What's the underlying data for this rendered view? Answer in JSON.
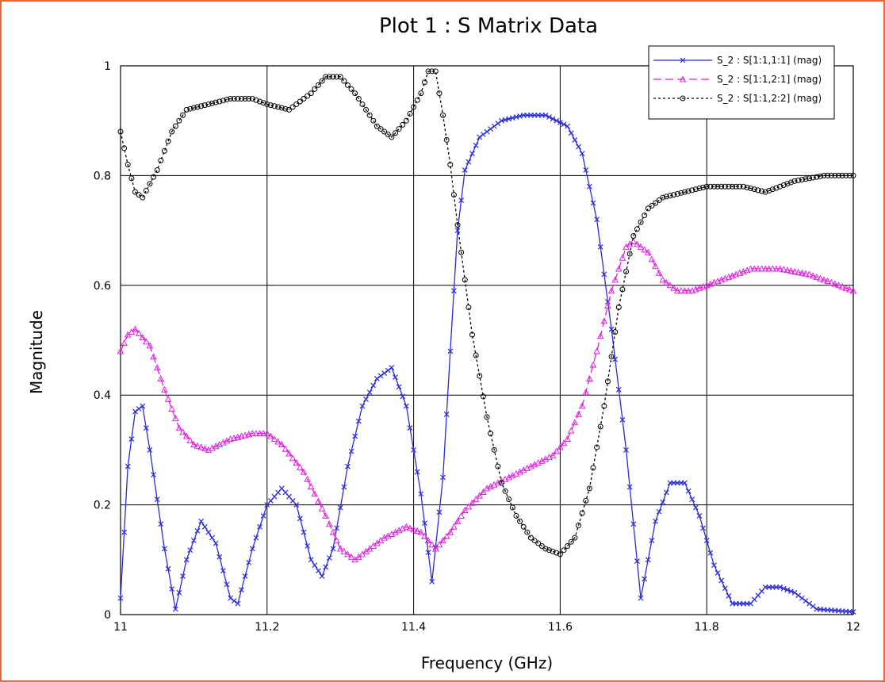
{
  "chart_data": {
    "type": "line",
    "title": "Plot 1 : S Matrix Data",
    "xlabel": "Frequency (GHz)",
    "ylabel": "Magnitude",
    "xlim": [
      11,
      12
    ],
    "ylim": [
      0,
      1
    ],
    "xticks": [
      "11",
      "11.2",
      "11.4",
      "11.6",
      "11.8",
      "12"
    ],
    "yticks": [
      "0",
      "0.2",
      "0.4",
      "0.6",
      "0.8",
      "1"
    ],
    "grid": true,
    "legend_position": "top-right",
    "series": [
      {
        "name": "S_2 : S[1:1,1:1] (mag)",
        "color": "#2b2bd6",
        "marker": "x",
        "linestyle": "solid",
        "points": [
          [
            11.0,
            0.03
          ],
          [
            11.01,
            0.27
          ],
          [
            11.02,
            0.37
          ],
          [
            11.03,
            0.38
          ],
          [
            11.04,
            0.3
          ],
          [
            11.06,
            0.12
          ],
          [
            11.075,
            0.01
          ],
          [
            11.09,
            0.1
          ],
          [
            11.11,
            0.17
          ],
          [
            11.13,
            0.13
          ],
          [
            11.15,
            0.03
          ],
          [
            11.16,
            0.02
          ],
          [
            11.18,
            0.12
          ],
          [
            11.2,
            0.2
          ],
          [
            11.22,
            0.23
          ],
          [
            11.24,
            0.2
          ],
          [
            11.26,
            0.1
          ],
          [
            11.275,
            0.07
          ],
          [
            11.29,
            0.12
          ],
          [
            11.31,
            0.27
          ],
          [
            11.33,
            0.38
          ],
          [
            11.35,
            0.43
          ],
          [
            11.37,
            0.45
          ],
          [
            11.39,
            0.38
          ],
          [
            11.41,
            0.22
          ],
          [
            11.425,
            0.06
          ],
          [
            11.44,
            0.25
          ],
          [
            11.45,
            0.48
          ],
          [
            11.46,
            0.7
          ],
          [
            11.47,
            0.81
          ],
          [
            11.49,
            0.87
          ],
          [
            11.52,
            0.9
          ],
          [
            11.55,
            0.91
          ],
          [
            11.58,
            0.91
          ],
          [
            11.61,
            0.89
          ],
          [
            11.63,
            0.84
          ],
          [
            11.65,
            0.72
          ],
          [
            11.67,
            0.52
          ],
          [
            11.69,
            0.3
          ],
          [
            11.71,
            0.03
          ],
          [
            11.73,
            0.17
          ],
          [
            11.75,
            0.24
          ],
          [
            11.77,
            0.24
          ],
          [
            11.79,
            0.18
          ],
          [
            11.81,
            0.09
          ],
          [
            11.835,
            0.02
          ],
          [
            11.86,
            0.02
          ],
          [
            11.88,
            0.05
          ],
          [
            11.9,
            0.05
          ],
          [
            11.92,
            0.04
          ],
          [
            11.95,
            0.01
          ],
          [
            12.0,
            0.005
          ]
        ]
      },
      {
        "name": "S_2 : S[1:1,2:1] (mag)",
        "color": "#e020e0",
        "marker": "triangle",
        "linestyle": "dashed",
        "points": [
          [
            11.0,
            0.48
          ],
          [
            11.01,
            0.51
          ],
          [
            11.02,
            0.52
          ],
          [
            11.04,
            0.49
          ],
          [
            11.06,
            0.41
          ],
          [
            11.08,
            0.34
          ],
          [
            11.1,
            0.31
          ],
          [
            11.12,
            0.3
          ],
          [
            11.15,
            0.32
          ],
          [
            11.18,
            0.33
          ],
          [
            11.2,
            0.33
          ],
          [
            11.22,
            0.31
          ],
          [
            11.25,
            0.26
          ],
          [
            11.28,
            0.18
          ],
          [
            11.3,
            0.12
          ],
          [
            11.32,
            0.1
          ],
          [
            11.34,
            0.12
          ],
          [
            11.36,
            0.14
          ],
          [
            11.39,
            0.16
          ],
          [
            11.41,
            0.15
          ],
          [
            11.43,
            0.12
          ],
          [
            11.45,
            0.15
          ],
          [
            11.47,
            0.19
          ],
          [
            11.5,
            0.23
          ],
          [
            11.53,
            0.25
          ],
          [
            11.56,
            0.27
          ],
          [
            11.59,
            0.29
          ],
          [
            11.61,
            0.32
          ],
          [
            11.63,
            0.38
          ],
          [
            11.65,
            0.48
          ],
          [
            11.67,
            0.59
          ],
          [
            11.69,
            0.67
          ],
          [
            11.7,
            0.68
          ],
          [
            11.72,
            0.66
          ],
          [
            11.74,
            0.61
          ],
          [
            11.76,
            0.59
          ],
          [
            11.78,
            0.59
          ],
          [
            11.82,
            0.61
          ],
          [
            11.86,
            0.63
          ],
          [
            11.9,
            0.63
          ],
          [
            11.94,
            0.62
          ],
          [
            11.98,
            0.6
          ],
          [
            12.0,
            0.59
          ]
        ]
      },
      {
        "name": "S_2 : S[1:1,2:2] (mag)",
        "color": "#000000",
        "marker": "circle",
        "linestyle": "dotted",
        "points": [
          [
            11.0,
            0.88
          ],
          [
            11.01,
            0.82
          ],
          [
            11.02,
            0.77
          ],
          [
            11.03,
            0.76
          ],
          [
            11.05,
            0.81
          ],
          [
            11.07,
            0.88
          ],
          [
            11.09,
            0.92
          ],
          [
            11.12,
            0.93
          ],
          [
            11.15,
            0.94
          ],
          [
            11.18,
            0.94
          ],
          [
            11.2,
            0.93
          ],
          [
            11.23,
            0.92
          ],
          [
            11.26,
            0.95
          ],
          [
            11.28,
            0.98
          ],
          [
            11.3,
            0.98
          ],
          [
            11.32,
            0.95
          ],
          [
            11.35,
            0.89
          ],
          [
            11.37,
            0.87
          ],
          [
            11.39,
            0.9
          ],
          [
            11.41,
            0.95
          ],
          [
            11.42,
            0.99
          ],
          [
            11.43,
            0.99
          ],
          [
            11.44,
            0.91
          ],
          [
            11.45,
            0.82
          ],
          [
            11.46,
            0.71
          ],
          [
            11.48,
            0.51
          ],
          [
            11.5,
            0.36
          ],
          [
            11.52,
            0.24
          ],
          [
            11.54,
            0.18
          ],
          [
            11.56,
            0.14
          ],
          [
            11.58,
            0.12
          ],
          [
            11.6,
            0.11
          ],
          [
            11.62,
            0.14
          ],
          [
            11.64,
            0.23
          ],
          [
            11.66,
            0.38
          ],
          [
            11.68,
            0.56
          ],
          [
            11.7,
            0.69
          ],
          [
            11.72,
            0.74
          ],
          [
            11.74,
            0.76
          ],
          [
            11.77,
            0.77
          ],
          [
            11.8,
            0.78
          ],
          [
            11.85,
            0.78
          ],
          [
            11.88,
            0.77
          ],
          [
            11.92,
            0.79
          ],
          [
            11.96,
            0.8
          ],
          [
            12.0,
            0.8
          ]
        ]
      }
    ]
  }
}
